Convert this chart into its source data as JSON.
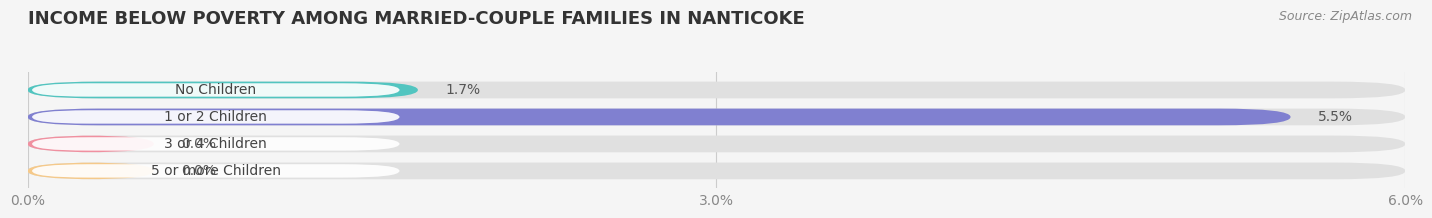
{
  "title": "INCOME BELOW POVERTY AMONG MARRIED-COUPLE FAMILIES IN NANTICOKE",
  "source": "Source: ZipAtlas.com",
  "categories": [
    "No Children",
    "1 or 2 Children",
    "3 or 4 Children",
    "5 or more Children"
  ],
  "values": [
    1.7,
    5.5,
    0.0,
    0.0
  ],
  "bar_colors": [
    "#52c5c0",
    "#8080d0",
    "#f090a0",
    "#f5c98a"
  ],
  "xlim": [
    0,
    6.0
  ],
  "xtick_labels": [
    "0.0%",
    "3.0%",
    "6.0%"
  ],
  "xtick_vals": [
    0.0,
    3.0,
    6.0
  ],
  "background_color": "#f5f5f5",
  "bar_background_color": "#e0e0e0",
  "title_fontsize": 13,
  "source_fontsize": 9,
  "label_fontsize": 10,
  "value_fontsize": 10,
  "tick_fontsize": 10,
  "bar_height": 0.62,
  "zero_bar_width": 0.55
}
